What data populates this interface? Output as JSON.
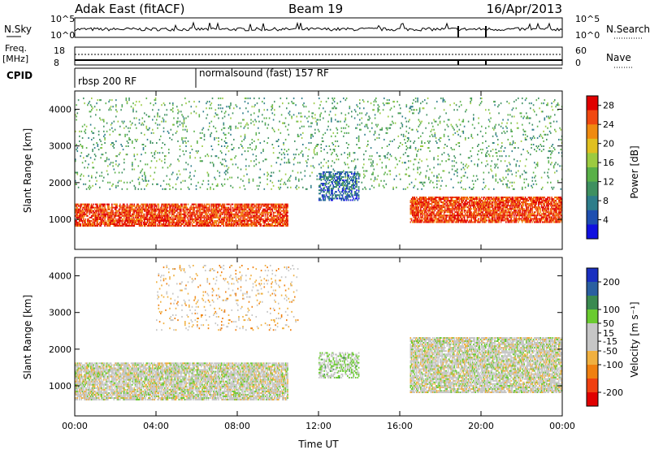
{
  "header": {
    "station": "Adak East (fitACF)",
    "beam": "Beam 19",
    "date": "16/Apr/2013"
  },
  "noise_panel": {
    "left_label": "N.Sky",
    "right_label": "N.Search",
    "ticks_top": "10^5",
    "ticks_bottom": "10^0"
  },
  "freq_panel": {
    "left_label_1": "Freq.",
    "left_label_2": "[MHz]",
    "ticks_left": [
      "18",
      "8"
    ],
    "right_label": "Nave",
    "ticks_right": [
      "60",
      "0"
    ]
  },
  "cpid_panel": {
    "label": "CPID",
    "programs": [
      {
        "name": "rbsp 200 RF",
        "start_hour": 0
      },
      {
        "name": "normalsound (fast) 157 RF",
        "start_hour": 6
      }
    ]
  },
  "colors": {
    "power_scale": [
      "#1010e0",
      "#1e4fb0",
      "#2d7d8a",
      "#3e9060",
      "#59b048",
      "#9ccb40",
      "#e0c020",
      "#f08a10",
      "#f04810",
      "#e00000"
    ],
    "velocity_scale": [
      "#1a2fc0",
      "#2a5fa0",
      "#3a8a50",
      "#6acb30",
      "#c6c6c6",
      "#c6c6c6",
      "#f0b040",
      "#f08010",
      "#f04010",
      "#e00000"
    ]
  },
  "chart_data": [
    {
      "type": "heatmap",
      "title": "Power",
      "xlabel": "Time UT",
      "ylabel": "Slant Range [km]",
      "xlim_hours": [
        0,
        24
      ],
      "ylim_km": [
        180,
        4500
      ],
      "x_ticks": [
        "00:00",
        "04:00",
        "08:00",
        "12:00",
        "16:00",
        "20:00",
        "00:00"
      ],
      "y_ticks": [
        1000,
        2000,
        3000,
        4000
      ],
      "colorbar": {
        "label": "Power [dB]",
        "ticks": [
          4,
          8,
          12,
          16,
          20,
          24,
          28
        ],
        "range": [
          0,
          30
        ]
      },
      "echo_regions": [
        {
          "region": "ground scatter band",
          "hours": [
            0,
            10.5
          ],
          "range_km": [
            800,
            1400
          ],
          "typical_value": 26
        },
        {
          "region": "ground scatter band",
          "hours": [
            16.5,
            24
          ],
          "range_km": [
            900,
            1600
          ],
          "typical_value": 26
        },
        {
          "region": "ionospheric patch",
          "hours": [
            12,
            14
          ],
          "range_km": [
            1500,
            2300
          ],
          "typical_value": 6
        },
        {
          "region": "scattered echoes",
          "hours": [
            0,
            24
          ],
          "range_km": [
            1800,
            4300
          ],
          "typical_value": 12
        }
      ]
    },
    {
      "type": "heatmap",
      "title": "Velocity",
      "xlabel": "Time UT",
      "ylabel": "Slant Range [km]",
      "xlim_hours": [
        0,
        24
      ],
      "ylim_km": [
        180,
        4500
      ],
      "x_ticks": [
        "00:00",
        "04:00",
        "08:00",
        "12:00",
        "16:00",
        "20:00",
        "00:00"
      ],
      "y_ticks": [
        1000,
        2000,
        3000,
        4000
      ],
      "colorbar": {
        "label": "Velocity [m s⁻¹]",
        "ticks": [
          200,
          100,
          50,
          15,
          -15,
          -50,
          -100,
          -200
        ],
        "range": [
          -250,
          250
        ]
      },
      "echo_regions": [
        {
          "region": "ground scatter band",
          "hours": [
            0,
            10.5
          ],
          "range_km": [
            600,
            1600
          ],
          "typical_value": 0
        },
        {
          "region": "ground scatter band",
          "hours": [
            16.5,
            24
          ],
          "range_km": [
            800,
            2300
          ],
          "typical_value": 0
        },
        {
          "region": "ionospheric patch",
          "hours": [
            12,
            14
          ],
          "range_km": [
            1200,
            1900
          ],
          "typical_value": 30
        },
        {
          "region": "scattered echoes",
          "hours": [
            4,
            11
          ],
          "range_km": [
            2500,
            4300
          ],
          "typical_value": -60
        }
      ]
    }
  ]
}
